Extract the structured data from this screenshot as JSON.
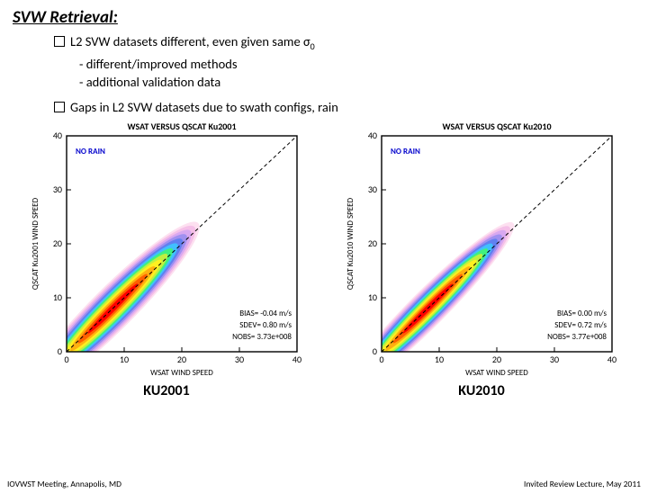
{
  "title": "SVW Retrieval:",
  "bullet1": "L2 SVW datasets different, even given same σ",
  "bullet1_sub": "0",
  "bullet1a": "- different/improved methods",
  "bullet1b": "- additional validation data",
  "bullet2": "Gaps in L2 SVW datasets due to swath configs, rain",
  "left_label": "KU2001",
  "right_label": "KU2010",
  "footer_left": "IOVWST Meeting, Annapolis, MD",
  "footer_right": "Invited Review Lecture, May 2011",
  "charts": {
    "left": {
      "title": "WSAT VERSUS QSCAT Ku2001",
      "ylabel": "QSCAT Ku2001 WIND SPEED",
      "xlabel": "WSAT WIND SPEED",
      "norain": "NO RAIN",
      "stats": {
        "bias": "BIAS= -0.04 m/s",
        "sdev": "SDEV= 0.80 m/s",
        "nobs": "NOBS= 3.73e+008"
      },
      "xlim": [
        0,
        40
      ],
      "ylim": [
        0,
        40
      ],
      "ticks": [
        0,
        10,
        20,
        30,
        40
      ],
      "colors": {
        "bg": "#ffffff",
        "axis": "#000000",
        "contours": [
          "#fde0f0",
          "#f5c0e8",
          "#d8a8f0",
          "#a090f0",
          "#6080f0",
          "#40c0ff",
          "#40f080",
          "#c0f040",
          "#fff020",
          "#ffb010",
          "#ff6000",
          "#ff0000"
        ]
      }
    },
    "right": {
      "title": "WSAT VERSUS QSCAT Ku2010",
      "ylabel": "QSCAT Ku2010 WIND SPEED",
      "xlabel": "WSAT WIND SPEED",
      "norain": "NO RAIN",
      "stats": {
        "bias": "BIAS=  0.00 m/s",
        "sdev": "SDEV= 0.72 m/s",
        "nobs": "NOBS= 3.77e+008"
      },
      "xlim": [
        0,
        40
      ],
      "ylim": [
        0,
        40
      ],
      "ticks": [
        0,
        10,
        20,
        30,
        40
      ],
      "colors": {
        "bg": "#ffffff",
        "axis": "#000000",
        "contours": [
          "#fde0f0",
          "#f5c0e8",
          "#d8a8f0",
          "#a090f0",
          "#6080f0",
          "#40c0ff",
          "#40f080",
          "#c0f040",
          "#fff020",
          "#ffb010",
          "#ff6000",
          "#ff0000"
        ]
      }
    }
  }
}
